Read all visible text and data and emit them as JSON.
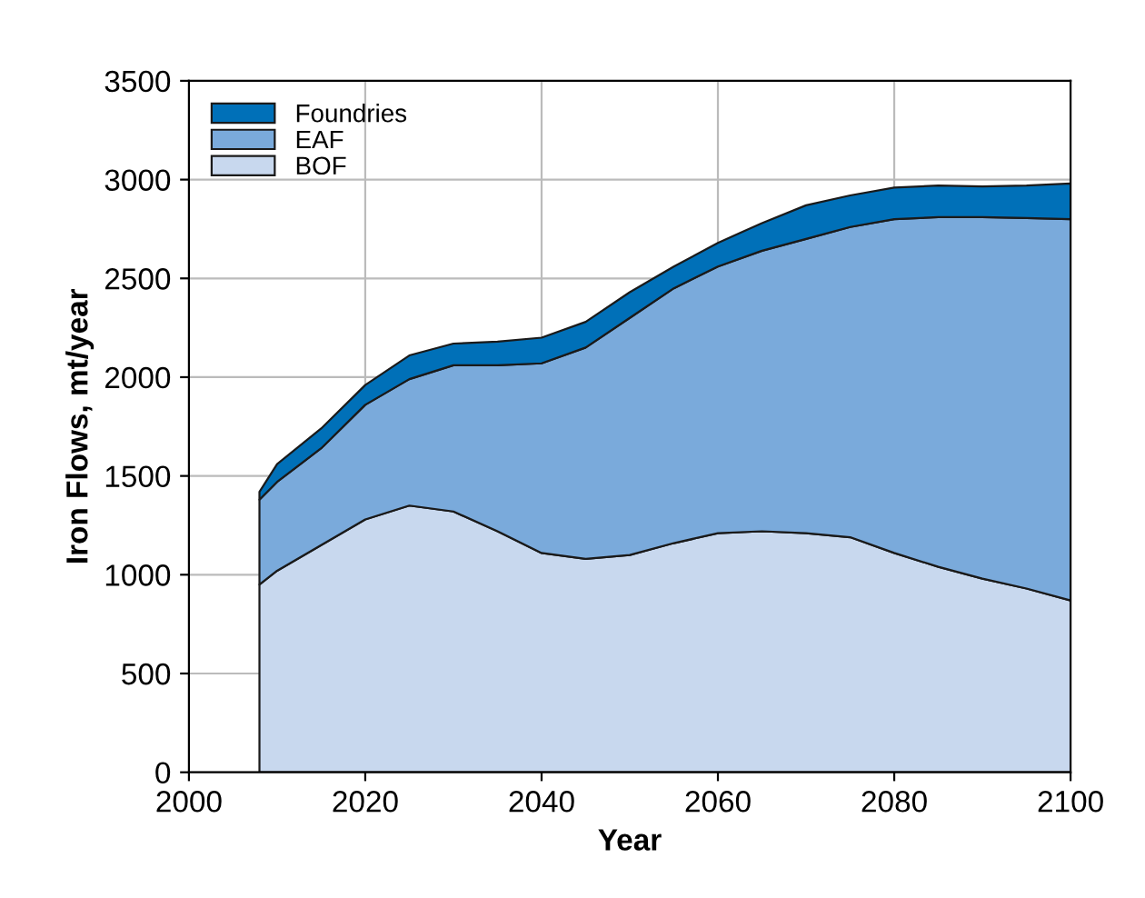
{
  "chart_data": {
    "type": "area",
    "stacked": true,
    "xlabel": "Year",
    "ylabel": "Iron Flows, mt/year",
    "x": [
      2008,
      2010,
      2015,
      2020,
      2025,
      2030,
      2035,
      2040,
      2045,
      2050,
      2055,
      2060,
      2065,
      2070,
      2075,
      2080,
      2085,
      2090,
      2095,
      2100
    ],
    "series": [
      {
        "name": "BOF",
        "color": "#c8d8ee",
        "values": [
          950,
          1020,
          1150,
          1280,
          1350,
          1320,
          1220,
          1110,
          1080,
          1100,
          1160,
          1210,
          1220,
          1210,
          1190,
          1110,
          1040,
          980,
          930,
          870
        ]
      },
      {
        "name": "EAF",
        "color": "#7aaadb",
        "values": [
          430,
          450,
          490,
          580,
          640,
          740,
          840,
          960,
          1070,
          1200,
          1290,
          1350,
          1420,
          1490,
          1570,
          1690,
          1770,
          1830,
          1875,
          1930
        ]
      },
      {
        "name": "Foundries",
        "color": "#0070b8",
        "values": [
          40,
          90,
          100,
          100,
          120,
          110,
          120,
          130,
          130,
          130,
          110,
          120,
          140,
          170,
          160,
          160,
          160,
          155,
          165,
          180
        ]
      }
    ],
    "xlim": [
      2000,
      2100
    ],
    "xticks": [
      2000,
      2020,
      2040,
      2060,
      2080,
      2100
    ],
    "ylim": [
      0,
      3500
    ],
    "yticks": [
      0,
      500,
      1000,
      1500,
      2000,
      2500,
      3000,
      3500
    ],
    "grid": true,
    "legend": "top left"
  }
}
